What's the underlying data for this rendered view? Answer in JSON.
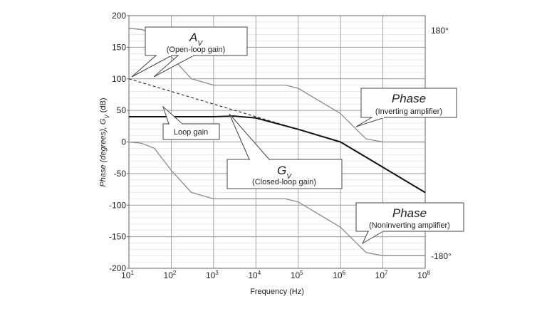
{
  "chart_data": {
    "type": "line",
    "xscale": "log",
    "xlim": [
      10,
      100000000
    ],
    "ylim": [
      -200,
      200
    ],
    "x_ticks": [
      {
        "base": "10",
        "exp": "1"
      },
      {
        "base": "10",
        "exp": "2"
      },
      {
        "base": "10",
        "exp": "3"
      },
      {
        "base": "10",
        "exp": "4"
      },
      {
        "base": "10",
        "exp": "5"
      },
      {
        "base": "10",
        "exp": "6"
      },
      {
        "base": "10",
        "exp": "7"
      },
      {
        "base": "10",
        "exp": "8"
      }
    ],
    "y_ticks": [
      "200",
      "150",
      "100",
      "50",
      "0",
      "-50",
      "-100",
      "-150",
      "-200"
    ],
    "right_labels": {
      "top": "180°",
      "bottom": "-180°"
    },
    "xlabel": "Frequency (Hz)",
    "ylabel": {
      "part1": "Phase (degrees), ",
      "gv": "G",
      "sub": "V",
      "part2": " (dB)"
    },
    "grid": true,
    "series": [
      {
        "key": "open_loop_gain",
        "style": "dashed",
        "x": [
          10,
          100,
          1000,
          10000,
          100000,
          1000000,
          10000000,
          100000000
        ],
        "y": [
          100,
          80,
          60,
          40,
          20,
          0,
          -40,
          -80
        ]
      },
      {
        "key": "closed_loop_gain",
        "style": "solid-bold",
        "x": [
          10,
          100,
          1000,
          3000,
          10000,
          100000,
          1000000,
          10000000,
          100000000
        ],
        "y": [
          40,
          40,
          40,
          41,
          38,
          20,
          0,
          -40,
          -80
        ]
      },
      {
        "key": "phase_inverting",
        "style": "solid-gray",
        "x": [
          10,
          20,
          40,
          100,
          300,
          1000,
          10000,
          50000,
          100000,
          1000000,
          4000000,
          10000000,
          100000000
        ],
        "y": [
          180,
          178,
          170,
          135,
          100,
          90,
          90,
          90,
          85,
          45,
          5,
          0,
          0
        ]
      },
      {
        "key": "phase_noninverting",
        "style": "solid-gray",
        "x": [
          10,
          20,
          40,
          100,
          300,
          1000,
          10000,
          50000,
          100000,
          1000000,
          4000000,
          10000000,
          100000000
        ],
        "y": [
          0,
          -2,
          -10,
          -45,
          -80,
          -90,
          -90,
          -90,
          -95,
          -135,
          -175,
          -180,
          -180
        ]
      }
    ]
  },
  "annotations": {
    "av": {
      "symbol": "A",
      "sub": "V",
      "desc": "(Open-loop gain)"
    },
    "loop_gain": {
      "text": "Loop gain"
    },
    "gv": {
      "symbol": "G",
      "sub": "V",
      "desc": "(Closed-loop gain)"
    },
    "phase_inv": {
      "title": "Phase",
      "desc": "(Inverting amplifier)"
    },
    "phase_noninv": {
      "title": "Phase",
      "desc": "(Noninverting amplifier)"
    }
  }
}
